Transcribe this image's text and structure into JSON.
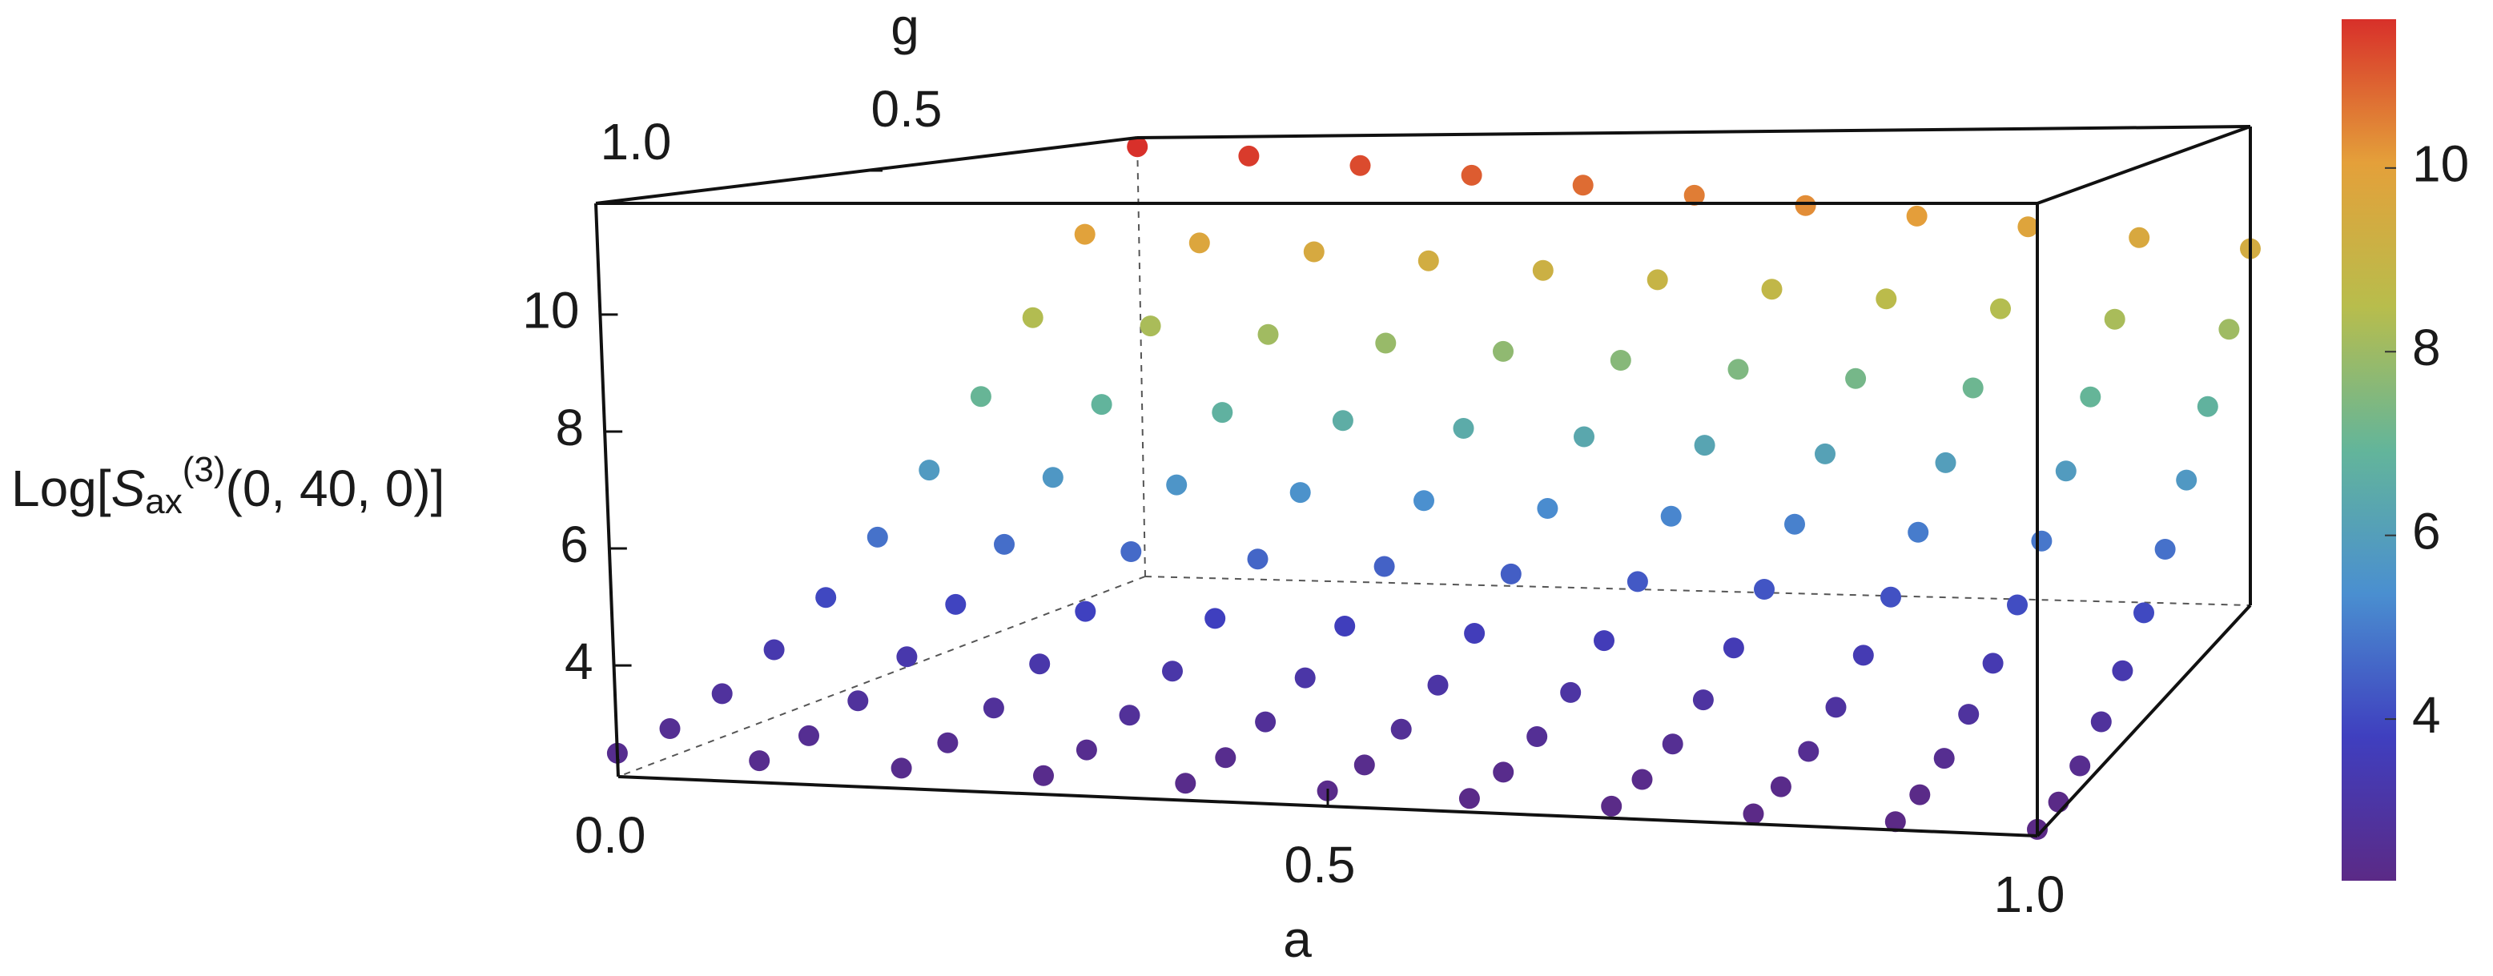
{
  "chart_data": {
    "type": "scatter3d",
    "xlabel": "a",
    "ylabel": "g",
    "zlabel": [
      "Log[",
      "S",
      "ax",
      "(3)",
      "(0, 40, 0)]"
    ],
    "x": [
      0,
      0.1,
      0.2,
      0.3,
      0.4,
      0.5,
      0.6,
      0.7,
      0.8,
      0.9,
      1
    ],
    "y": [
      1,
      0.9,
      0.8,
      0.7,
      0.6,
      0.5,
      0.4,
      0.3,
      0.2,
      0.1,
      0
    ],
    "z": [
      [
        2.5,
        2.47,
        2.44,
        2.41,
        2.38,
        2.35,
        2.32,
        2.29,
        2.26,
        2.23,
        2.2
      ],
      [
        2.59,
        2.56,
        2.53,
        2.5,
        2.46,
        2.43,
        2.4,
        2.37,
        2.34,
        2.3,
        2.27
      ],
      [
        2.87,
        2.83,
        2.79,
        2.75,
        2.72,
        2.68,
        2.64,
        2.6,
        2.56,
        2.53,
        2.49
      ],
      [
        3.33,
        3.28,
        3.23,
        3.18,
        3.14,
        3.09,
        3.04,
        2.99,
        2.94,
        2.9,
        2.85
      ],
      [
        3.97,
        3.91,
        3.85,
        3.79,
        3.72,
        3.66,
        3.6,
        3.54,
        3.48,
        3.41,
        3.35
      ],
      [
        4.8,
        4.72,
        4.64,
        4.56,
        4.48,
        4.4,
        4.32,
        4.24,
        4.16,
        4.08,
        4
      ],
      [
        5.81,
        5.71,
        5.61,
        5.51,
        5.4,
        5.3,
        5.2,
        5.1,
        5,
        4.89,
        4.79
      ],
      [
        7.01,
        6.88,
        6.75,
        6.62,
        6.5,
        6.37,
        6.24,
        6.11,
        5.98,
        5.86,
        5.73
      ],
      [
        8.39,
        8.23,
        8.07,
        7.91,
        7.76,
        7.6,
        7.44,
        7.28,
        7.12,
        6.97,
        6.81
      ],
      [
        9.95,
        9.76,
        9.57,
        9.38,
        9.18,
        8.99,
        8.8,
        8.61,
        8.42,
        8.22,
        8.03
      ],
      [
        11.7,
        11.47,
        11.24,
        11.01,
        10.78,
        10.55,
        10.32,
        10.09,
        9.86,
        9.63,
        9.4
      ]
    ],
    "xlim": [
      0,
      1
    ],
    "ylim": [
      0,
      1
    ],
    "zlim": [
      2.1,
      11.9
    ],
    "xticks": [
      {
        "value": 0,
        "label": "0.0"
      },
      {
        "value": 0.5,
        "label": "0.5"
      },
      {
        "value": 1,
        "label": "1.0"
      }
    ],
    "yticks": [
      {
        "value": 0.5,
        "label": "0.5"
      },
      {
        "value": 1,
        "label": "1.0"
      }
    ],
    "zticks": [
      4,
      6,
      8,
      10
    ],
    "colorbar": {
      "lim": [
        2.24,
        11.62
      ],
      "ticks": [
        4,
        6,
        8,
        10
      ],
      "colors": [
        "#5b2a86",
        "#3f3fbf",
        "#4a8fd0",
        "#63b59a",
        "#b8bd4c",
        "#e4a03a",
        "#d8302a"
      ]
    }
  }
}
